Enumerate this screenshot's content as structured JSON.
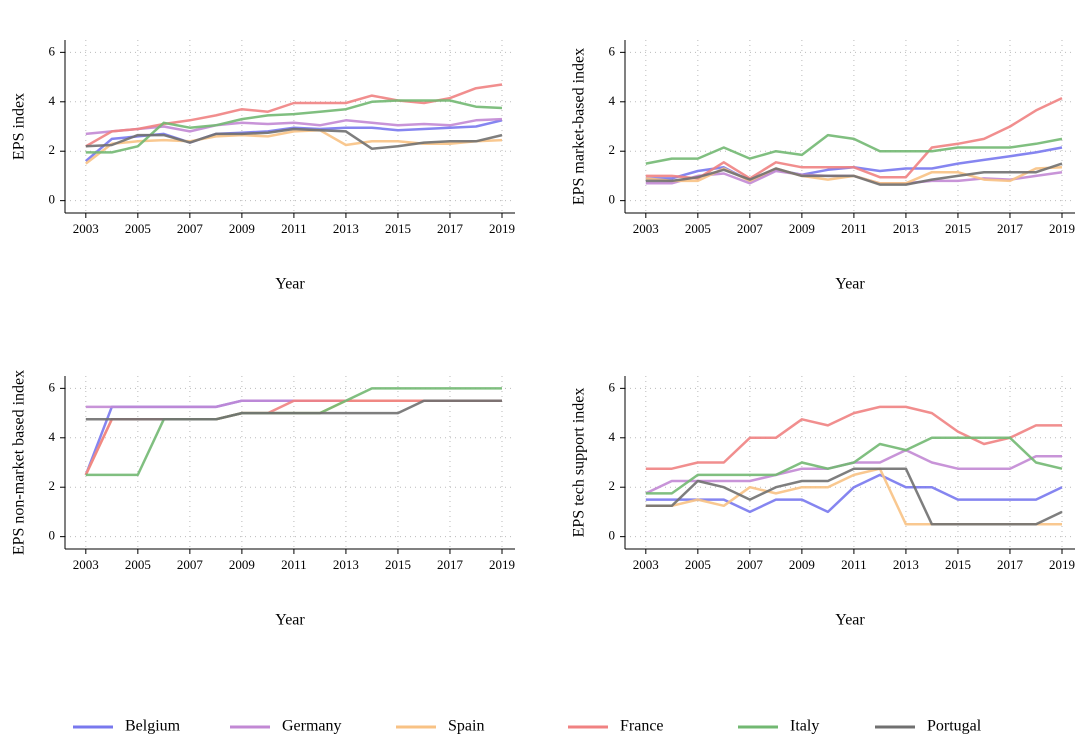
{
  "chart_data": [
    {
      "type": "line",
      "y_label": "EPS index",
      "x_label": "Year",
      "x": [
        2003,
        2004,
        2005,
        2006,
        2007,
        2008,
        2009,
        2010,
        2011,
        2012,
        2013,
        2014,
        2015,
        2016,
        2017,
        2018,
        2019
      ],
      "xlim": [
        2002.2,
        2019.5
      ],
      "xticks": [
        2003,
        2005,
        2007,
        2009,
        2011,
        2013,
        2015,
        2017,
        2019
      ],
      "ylim": [
        -0.5,
        6.5
      ],
      "yticks": [
        0,
        2,
        4,
        6
      ],
      "grid": true,
      "series": [
        {
          "name": "Belgium",
          "color": "#7878ee",
          "values": [
            1.6,
            2.5,
            2.6,
            2.7,
            2.35,
            2.7,
            2.75,
            2.8,
            2.95,
            2.9,
            2.95,
            2.95,
            2.85,
            2.9,
            2.95,
            3.0,
            3.25
          ]
        },
        {
          "name": "Germany",
          "color": "#c288d4",
          "values": [
            2.7,
            2.8,
            2.9,
            3.0,
            2.8,
            3.05,
            3.15,
            3.1,
            3.15,
            3.05,
            3.25,
            3.15,
            3.05,
            3.1,
            3.05,
            3.25,
            3.3
          ]
        },
        {
          "name": "Spain",
          "color": "#f8c284",
          "values": [
            1.5,
            2.3,
            2.4,
            2.45,
            2.4,
            2.6,
            2.65,
            2.6,
            2.8,
            2.85,
            2.25,
            2.4,
            2.4,
            2.3,
            2.3,
            2.4,
            2.45
          ]
        },
        {
          "name": "France",
          "color": "#f08282",
          "values": [
            2.2,
            2.8,
            2.9,
            3.1,
            3.25,
            3.45,
            3.7,
            3.6,
            3.95,
            3.95,
            3.95,
            4.25,
            4.05,
            3.95,
            4.15,
            4.55,
            4.7
          ]
        },
        {
          "name": "Italy",
          "color": "#72b872",
          "values": [
            1.95,
            1.95,
            2.2,
            3.15,
            2.95,
            3.05,
            3.3,
            3.45,
            3.5,
            3.6,
            3.7,
            4.0,
            4.05,
            4.05,
            4.05,
            3.8,
            3.75
          ]
        },
        {
          "name": "Portugal",
          "color": "#707070",
          "values": [
            2.2,
            2.25,
            2.65,
            2.65,
            2.35,
            2.7,
            2.7,
            2.75,
            2.9,
            2.85,
            2.8,
            2.1,
            2.2,
            2.35,
            2.4,
            2.4,
            2.65
          ]
        }
      ]
    },
    {
      "type": "line",
      "y_label": "EPS market-based index",
      "x_label": "Year",
      "x": [
        2003,
        2004,
        2005,
        2006,
        2007,
        2008,
        2009,
        2010,
        2011,
        2012,
        2013,
        2014,
        2015,
        2016,
        2017,
        2018,
        2019
      ],
      "xlim": [
        2002.2,
        2019.5
      ],
      "xticks": [
        2003,
        2005,
        2007,
        2009,
        2011,
        2013,
        2015,
        2017,
        2019
      ],
      "ylim": [
        -0.5,
        6.5
      ],
      "yticks": [
        0,
        2,
        4,
        6
      ],
      "grid": true,
      "series": [
        {
          "name": "Belgium",
          "color": "#7878ee",
          "values": [
            0.9,
            0.9,
            1.2,
            1.35,
            0.8,
            1.25,
            1.05,
            1.25,
            1.35,
            1.2,
            1.3,
            1.3,
            1.5,
            1.65,
            1.8,
            1.95,
            2.15
          ]
        },
        {
          "name": "Germany",
          "color": "#c288d4",
          "values": [
            0.7,
            0.7,
            1.0,
            1.1,
            0.7,
            1.2,
            1.05,
            1.0,
            1.0,
            0.7,
            0.7,
            0.8,
            0.8,
            0.9,
            0.85,
            1.0,
            1.15
          ]
        },
        {
          "name": "Spain",
          "color": "#f8c284",
          "values": [
            0.9,
            0.8,
            0.8,
            1.3,
            0.8,
            1.3,
            1.0,
            0.85,
            1.0,
            0.7,
            0.7,
            1.15,
            1.15,
            0.85,
            0.8,
            1.3,
            1.35
          ]
        },
        {
          "name": "France",
          "color": "#f08282",
          "values": [
            1.0,
            1.0,
            0.9,
            1.55,
            0.9,
            1.55,
            1.35,
            1.35,
            1.35,
            0.95,
            0.95,
            2.15,
            2.3,
            2.5,
            3.0,
            3.65,
            4.15
          ]
        },
        {
          "name": "Italy",
          "color": "#72b872",
          "values": [
            1.5,
            1.7,
            1.7,
            2.15,
            1.7,
            2.0,
            1.85,
            2.65,
            2.5,
            2.0,
            2.0,
            2.0,
            2.15,
            2.15,
            2.15,
            2.3,
            2.5
          ]
        },
        {
          "name": "Portugal",
          "color": "#707070",
          "values": [
            0.8,
            0.8,
            0.95,
            1.25,
            0.85,
            1.3,
            1.0,
            1.0,
            1.0,
            0.65,
            0.65,
            0.85,
            1.0,
            1.15,
            1.15,
            1.15,
            1.5
          ]
        }
      ]
    },
    {
      "type": "line",
      "y_label": "EPS non-market based index",
      "x_label": "Year",
      "x": [
        2003,
        2004,
        2005,
        2006,
        2007,
        2008,
        2009,
        2010,
        2011,
        2012,
        2013,
        2014,
        2015,
        2016,
        2017,
        2018,
        2019
      ],
      "xlim": [
        2002.2,
        2019.5
      ],
      "xticks": [
        2003,
        2005,
        2007,
        2009,
        2011,
        2013,
        2015,
        2017,
        2019
      ],
      "ylim": [
        -0.5,
        6.5
      ],
      "yticks": [
        0,
        2,
        4,
        6
      ],
      "grid": true,
      "series": [
        {
          "name": "Belgium",
          "color": "#7878ee",
          "values": [
            2.5,
            5.25,
            5.25,
            5.25,
            5.25,
            5.25,
            5.5,
            5.5,
            5.5,
            5.5,
            5.5,
            5.5,
            5.5,
            5.5,
            5.5,
            5.5,
            5.5
          ]
        },
        {
          "name": "Germany",
          "color": "#c288d4",
          "values": [
            5.25,
            5.25,
            5.25,
            5.25,
            5.25,
            5.25,
            5.5,
            5.5,
            5.5,
            5.5,
            5.5,
            5.5,
            5.5,
            5.5,
            5.5,
            5.5,
            5.5
          ]
        },
        {
          "name": "Spain",
          "color": "#f8c284",
          "values": [
            2.5,
            4.75,
            4.75,
            4.75,
            4.75,
            4.75,
            5.0,
            5.0,
            5.0,
            5.0,
            5.5,
            5.5,
            5.5,
            5.5,
            5.5,
            5.5,
            5.5
          ]
        },
        {
          "name": "France",
          "color": "#f08282",
          "values": [
            2.5,
            4.75,
            4.75,
            4.75,
            4.75,
            4.75,
            5.0,
            5.0,
            5.5,
            5.5,
            5.5,
            5.5,
            5.5,
            5.5,
            5.5,
            5.5,
            5.5
          ]
        },
        {
          "name": "Italy",
          "color": "#72b872",
          "values": [
            2.5,
            2.5,
            2.5,
            4.75,
            4.75,
            4.75,
            5.0,
            5.0,
            5.0,
            5.0,
            5.5,
            6.0,
            6.0,
            6.0,
            6.0,
            6.0,
            6.0
          ]
        },
        {
          "name": "Portugal",
          "color": "#707070",
          "values": [
            4.75,
            4.75,
            4.75,
            4.75,
            4.75,
            4.75,
            5.0,
            5.0,
            5.0,
            5.0,
            5.0,
            5.0,
            5.0,
            5.5,
            5.5,
            5.5,
            5.5
          ]
        }
      ]
    },
    {
      "type": "line",
      "y_label": "EPS tech support index",
      "x_label": "Year",
      "x": [
        2003,
        2004,
        2005,
        2006,
        2007,
        2008,
        2009,
        2010,
        2011,
        2012,
        2013,
        2014,
        2015,
        2016,
        2017,
        2018,
        2019
      ],
      "xlim": [
        2002.2,
        2019.5
      ],
      "xticks": [
        2003,
        2005,
        2007,
        2009,
        2011,
        2013,
        2015,
        2017,
        2019
      ],
      "ylim": [
        -0.5,
        6.5
      ],
      "yticks": [
        0,
        2,
        4,
        6
      ],
      "grid": true,
      "series": [
        {
          "name": "Belgium",
          "color": "#7878ee",
          "values": [
            1.5,
            1.5,
            1.5,
            1.5,
            1.0,
            1.5,
            1.5,
            1.0,
            2.0,
            2.5,
            2.0,
            2.0,
            1.5,
            1.5,
            1.5,
            1.5,
            2.0
          ]
        },
        {
          "name": "Germany",
          "color": "#c288d4",
          "values": [
            1.75,
            2.25,
            2.25,
            2.25,
            2.25,
            2.5,
            2.75,
            2.75,
            3.0,
            3.0,
            3.5,
            3.0,
            2.75,
            2.75,
            2.75,
            3.25,
            3.25
          ]
        },
        {
          "name": "Spain",
          "color": "#f8c284",
          "values": [
            1.25,
            1.25,
            1.5,
            1.25,
            2.0,
            1.75,
            2.0,
            2.0,
            2.5,
            2.75,
            0.5,
            0.5,
            0.5,
            0.5,
            0.5,
            0.5,
            0.5
          ]
        },
        {
          "name": "France",
          "color": "#f08282",
          "values": [
            2.75,
            2.75,
            3.0,
            3.0,
            4.0,
            4.0,
            4.75,
            4.5,
            5.0,
            5.25,
            5.25,
            5.0,
            4.25,
            3.75,
            4.0,
            4.5,
            4.5
          ]
        },
        {
          "name": "Italy",
          "color": "#72b872",
          "values": [
            1.75,
            1.75,
            2.5,
            2.5,
            2.5,
            2.5,
            3.0,
            2.75,
            3.0,
            3.75,
            3.5,
            4.0,
            4.0,
            4.0,
            4.0,
            3.0,
            2.75
          ]
        },
        {
          "name": "Portugal",
          "color": "#707070",
          "values": [
            1.25,
            1.25,
            2.25,
            2.0,
            1.5,
            2.0,
            2.25,
            2.25,
            2.75,
            2.75,
            2.75,
            0.5,
            0.5,
            0.5,
            0.5,
            0.5,
            1.0
          ]
        }
      ]
    }
  ]
}
